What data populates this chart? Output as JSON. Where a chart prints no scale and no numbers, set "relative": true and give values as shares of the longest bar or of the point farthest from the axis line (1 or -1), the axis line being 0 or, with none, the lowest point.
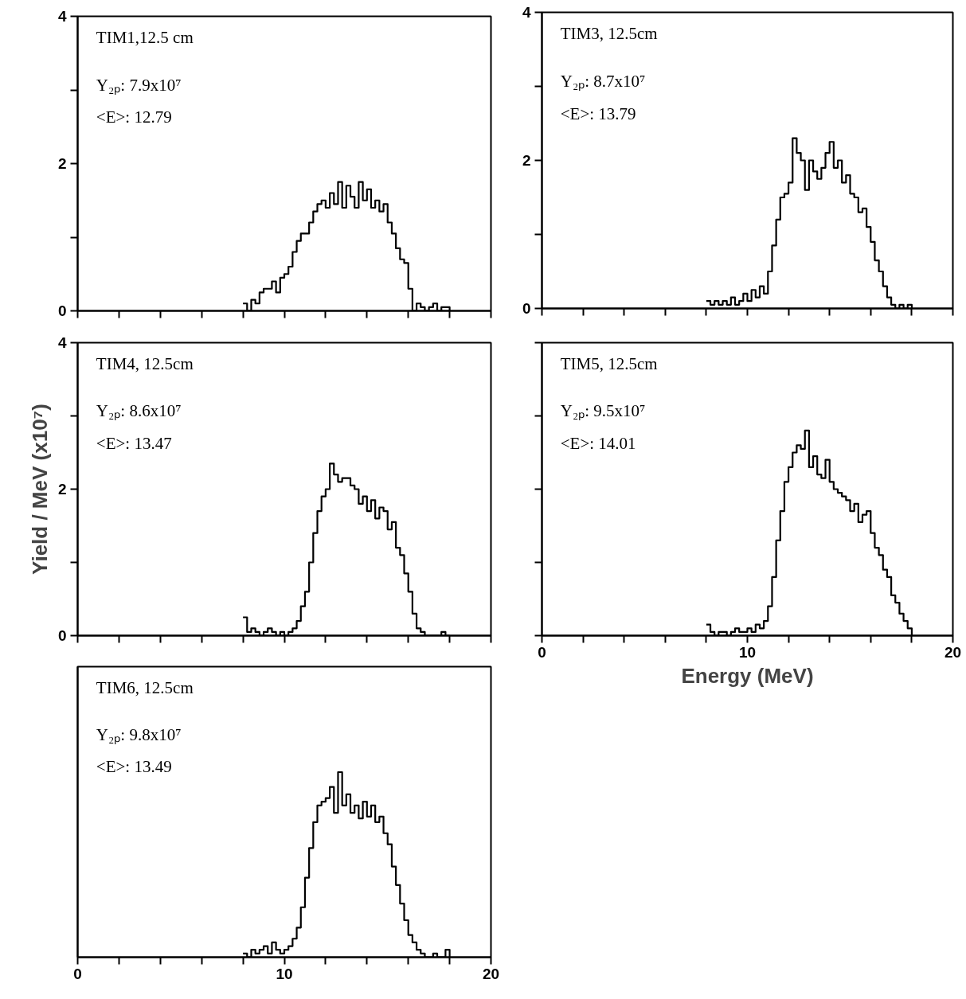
{
  "chart_data": [
    {
      "type": "step",
      "annotations": [
        "TIM1,12.5 cm",
        "Y₂ₚ: 7.9x10⁷",
        "<E>: 12.79"
      ],
      "xlim": [
        0,
        20
      ],
      "ylim": [
        0,
        4
      ],
      "tick_labels": "y",
      "xticks": [
        0,
        {
          "value": 2,
          "label": null
        },
        {
          "value": 4,
          "label": null
        },
        {
          "value": 6,
          "label": null
        },
        {
          "value": 8,
          "label": null
        },
        10,
        {
          "value": 12,
          "label": null
        },
        {
          "value": 14,
          "label": null
        },
        {
          "value": 16,
          "label": null
        },
        {
          "value": 18,
          "label": null
        },
        20
      ],
      "yticks": [
        0,
        {
          "value": 1,
          "label": null
        },
        2,
        {
          "value": 3,
          "label": null
        },
        4
      ],
      "x": [
        8.0,
        8.2,
        8.4,
        8.6,
        8.8,
        9.0,
        9.2,
        9.4,
        9.6,
        9.8,
        10.0,
        10.2,
        10.4,
        10.6,
        10.8,
        11.0,
        11.2,
        11.4,
        11.6,
        11.8,
        12.0,
        12.2,
        12.4,
        12.6,
        12.8,
        13.0,
        13.2,
        13.4,
        13.6,
        13.8,
        14.0,
        14.2,
        14.4,
        14.6,
        14.8,
        15.0,
        15.2,
        15.4,
        15.6,
        15.8,
        16.0,
        16.2,
        16.4,
        16.6,
        16.8,
        17.0,
        17.2,
        17.4,
        17.6,
        17.8,
        18.0
      ],
      "series": [
        {
          "color": "#000000",
          "values": [
            0.1,
            0.0,
            0.15,
            0.1,
            0.25,
            0.3,
            0.3,
            0.4,
            0.25,
            0.45,
            0.5,
            0.6,
            0.8,
            0.95,
            1.05,
            1.05,
            1.2,
            1.35,
            1.45,
            1.5,
            1.4,
            1.6,
            1.45,
            1.75,
            1.4,
            1.7,
            1.55,
            1.4,
            1.75,
            1.5,
            1.65,
            1.4,
            1.5,
            1.35,
            1.45,
            1.2,
            1.05,
            0.85,
            0.7,
            0.65,
            0.3,
            0.0,
            0.1,
            0.05,
            0.0,
            0.05,
            0.1,
            0.0,
            0.05,
            0.05,
            0.0
          ]
        }
      ]
    },
    {
      "type": "step",
      "annotations": [
        "TIM3, 12.5cm",
        "Y₂ₚ: 8.7x10⁷",
        "<E>: 13.79"
      ],
      "xlim": [
        0,
        20
      ],
      "ylim": [
        0,
        4
      ],
      "tick_labels": "y",
      "xticks": [
        0,
        {
          "value": 2,
          "label": null
        },
        {
          "value": 4,
          "label": null
        },
        {
          "value": 6,
          "label": null
        },
        {
          "value": 8,
          "label": null
        },
        10,
        {
          "value": 12,
          "label": null
        },
        {
          "value": 14,
          "label": null
        },
        {
          "value": 16,
          "label": null
        },
        {
          "value": 18,
          "label": null
        },
        20
      ],
      "yticks": [
        0,
        {
          "value": 1,
          "label": null
        },
        2,
        {
          "value": 3,
          "label": null
        },
        4
      ],
      "x": [
        8.0,
        8.2,
        8.4,
        8.6,
        8.8,
        9.0,
        9.2,
        9.4,
        9.6,
        9.8,
        10.0,
        10.2,
        10.4,
        10.6,
        10.8,
        11.0,
        11.2,
        11.4,
        11.6,
        11.8,
        12.0,
        12.2,
        12.4,
        12.6,
        12.8,
        13.0,
        13.2,
        13.4,
        13.6,
        13.8,
        14.0,
        14.2,
        14.4,
        14.6,
        14.8,
        15.0,
        15.2,
        15.4,
        15.6,
        15.8,
        16.0,
        16.2,
        16.4,
        16.6,
        16.8,
        17.0,
        17.2,
        17.4,
        17.6,
        17.8,
        18.0
      ],
      "series": [
        {
          "color": "#000000",
          "values": [
            0.1,
            0.05,
            0.1,
            0.05,
            0.1,
            0.05,
            0.15,
            0.05,
            0.1,
            0.2,
            0.1,
            0.25,
            0.15,
            0.3,
            0.2,
            0.5,
            0.85,
            1.2,
            1.5,
            1.55,
            1.7,
            2.3,
            2.1,
            2.0,
            1.6,
            2.0,
            1.85,
            1.75,
            1.9,
            2.1,
            2.25,
            1.9,
            2.0,
            1.7,
            1.8,
            1.55,
            1.5,
            1.3,
            1.35,
            1.1,
            0.9,
            0.65,
            0.5,
            0.3,
            0.15,
            0.05,
            0.0,
            0.05,
            0.0,
            0.05,
            0.0
          ]
        }
      ]
    },
    {
      "type": "step",
      "annotations": [
        "TIM4, 12.5cm",
        "Y₂ₚ: 8.6x10⁷",
        "<E>: 13.47"
      ],
      "ylabel": "Yield / MeV (x10⁷)",
      "xlim": [
        0,
        20
      ],
      "ylim": [
        0,
        4
      ],
      "tick_labels": "y",
      "xticks": [
        0,
        {
          "value": 2,
          "label": null
        },
        {
          "value": 4,
          "label": null
        },
        {
          "value": 6,
          "label": null
        },
        {
          "value": 8,
          "label": null
        },
        10,
        {
          "value": 12,
          "label": null
        },
        {
          "value": 14,
          "label": null
        },
        {
          "value": 16,
          "label": null
        },
        {
          "value": 18,
          "label": null
        },
        20
      ],
      "yticks": [
        0,
        {
          "value": 1,
          "label": null
        },
        2,
        {
          "value": 3,
          "label": null
        },
        4
      ],
      "x": [
        8.0,
        8.2,
        8.4,
        8.6,
        8.8,
        9.0,
        9.2,
        9.4,
        9.6,
        9.8,
        10.0,
        10.2,
        10.4,
        10.6,
        10.8,
        11.0,
        11.2,
        11.4,
        11.6,
        11.8,
        12.0,
        12.2,
        12.4,
        12.6,
        12.8,
        13.0,
        13.2,
        13.4,
        13.6,
        13.8,
        14.0,
        14.2,
        14.4,
        14.6,
        14.8,
        15.0,
        15.2,
        15.4,
        15.6,
        15.8,
        16.0,
        16.2,
        16.4,
        16.6,
        16.8,
        17.0,
        17.2,
        17.4,
        17.6,
        17.8,
        18.0
      ],
      "series": [
        {
          "color": "#000000",
          "values": [
            0.25,
            0.05,
            0.1,
            0.05,
            0.0,
            0.05,
            0.1,
            0.05,
            0.0,
            0.05,
            0.0,
            0.05,
            0.1,
            0.2,
            0.4,
            0.6,
            1.0,
            1.4,
            1.7,
            1.9,
            2.0,
            2.35,
            2.2,
            2.1,
            2.15,
            2.15,
            2.05,
            2.0,
            1.8,
            1.9,
            1.7,
            1.85,
            1.6,
            1.75,
            1.7,
            1.45,
            1.55,
            1.2,
            1.1,
            0.85,
            0.6,
            0.3,
            0.1,
            0.05,
            0.0,
            0.0,
            0.0,
            0.0,
            0.05,
            0.0,
            0.0
          ]
        }
      ]
    },
    {
      "type": "step",
      "annotations": [
        "TIM5, 12.5cm",
        "Y₂ₚ: 9.5x10⁷",
        "<E>: 14.01"
      ],
      "xlabel": "Energy (MeV)",
      "xlim": [
        0,
        20
      ],
      "ylim": [
        0,
        4
      ],
      "tick_labels": "x",
      "xticks": [
        0,
        {
          "value": 2,
          "label": null
        },
        {
          "value": 4,
          "label": null
        },
        {
          "value": 6,
          "label": null
        },
        {
          "value": 8,
          "label": null
        },
        10,
        {
          "value": 12,
          "label": null
        },
        {
          "value": 14,
          "label": null
        },
        {
          "value": 16,
          "label": null
        },
        {
          "value": 18,
          "label": null
        },
        20
      ],
      "yticks": [
        {
          "value": 0,
          "label": null
        },
        {
          "value": 1,
          "label": null
        },
        {
          "value": 2,
          "label": null
        },
        {
          "value": 3,
          "label": null
        },
        {
          "value": 4,
          "label": null
        }
      ],
      "x": [
        8.0,
        8.2,
        8.4,
        8.6,
        8.8,
        9.0,
        9.2,
        9.4,
        9.6,
        9.8,
        10.0,
        10.2,
        10.4,
        10.6,
        10.8,
        11.0,
        11.2,
        11.4,
        11.6,
        11.8,
        12.0,
        12.2,
        12.4,
        12.6,
        12.8,
        13.0,
        13.2,
        13.4,
        13.6,
        13.8,
        14.0,
        14.2,
        14.4,
        14.6,
        14.8,
        15.0,
        15.2,
        15.4,
        15.6,
        15.8,
        16.0,
        16.2,
        16.4,
        16.6,
        16.8,
        17.0,
        17.2,
        17.4,
        17.6,
        17.8,
        18.0
      ],
      "series": [
        {
          "color": "#000000",
          "values": [
            0.15,
            0.05,
            0.0,
            0.05,
            0.05,
            0.0,
            0.05,
            0.1,
            0.05,
            0.05,
            0.1,
            0.05,
            0.15,
            0.1,
            0.2,
            0.4,
            0.8,
            1.3,
            1.7,
            2.1,
            2.3,
            2.5,
            2.6,
            2.55,
            2.8,
            2.3,
            2.45,
            2.2,
            2.15,
            2.4,
            2.1,
            2.0,
            1.95,
            1.9,
            1.85,
            1.7,
            1.8,
            1.55,
            1.65,
            1.7,
            1.4,
            1.2,
            1.1,
            0.9,
            0.8,
            0.55,
            0.45,
            0.3,
            0.2,
            0.1,
            0.0
          ]
        }
      ]
    },
    {
      "type": "step",
      "annotations": [
        "TIM6, 12.5cm",
        "Y₂ₚ: 9.8x10⁷",
        "<E>: 13.49"
      ],
      "xlim": [
        0,
        20
      ],
      "relative": true,
      "xticks": [
        0,
        {
          "value": 2,
          "label": null
        },
        {
          "value": 4,
          "label": null
        },
        {
          "value": 6,
          "label": null
        },
        {
          "value": 8,
          "label": null
        },
        10,
        {
          "value": 12,
          "label": null
        },
        {
          "value": 14,
          "label": null
        },
        {
          "value": 16,
          "label": null
        },
        {
          "value": 18,
          "label": null
        },
        20
      ],
      "x": [
        8.0,
        8.2,
        8.4,
        8.6,
        8.8,
        9.0,
        9.2,
        9.4,
        9.6,
        9.8,
        10.0,
        10.2,
        10.4,
        10.6,
        10.8,
        11.0,
        11.2,
        11.4,
        11.6,
        11.8,
        12.0,
        12.2,
        12.4,
        12.6,
        12.8,
        13.0,
        13.2,
        13.4,
        13.6,
        13.8,
        14.0,
        14.2,
        14.4,
        14.6,
        14.8,
        15.0,
        15.2,
        15.4,
        15.6,
        15.8,
        16.0,
        16.2,
        16.4,
        16.6,
        16.8,
        17.0,
        17.2,
        17.4,
        17.6,
        17.8,
        18.0
      ],
      "series": [
        {
          "color": "#000000",
          "values": [
            0.02,
            0.0,
            0.04,
            0.02,
            0.04,
            0.06,
            0.02,
            0.08,
            0.04,
            0.02,
            0.04,
            0.06,
            0.1,
            0.16,
            0.27,
            0.43,
            0.59,
            0.73,
            0.82,
            0.84,
            0.86,
            0.92,
            0.78,
            1.0,
            0.82,
            0.88,
            0.78,
            0.82,
            0.75,
            0.84,
            0.76,
            0.82,
            0.73,
            0.76,
            0.67,
            0.61,
            0.49,
            0.39,
            0.29,
            0.2,
            0.12,
            0.08,
            0.04,
            0.02,
            0.0,
            0.0,
            0.02,
            0.0,
            0.0,
            0.04,
            0.0
          ]
        }
      ]
    }
  ]
}
